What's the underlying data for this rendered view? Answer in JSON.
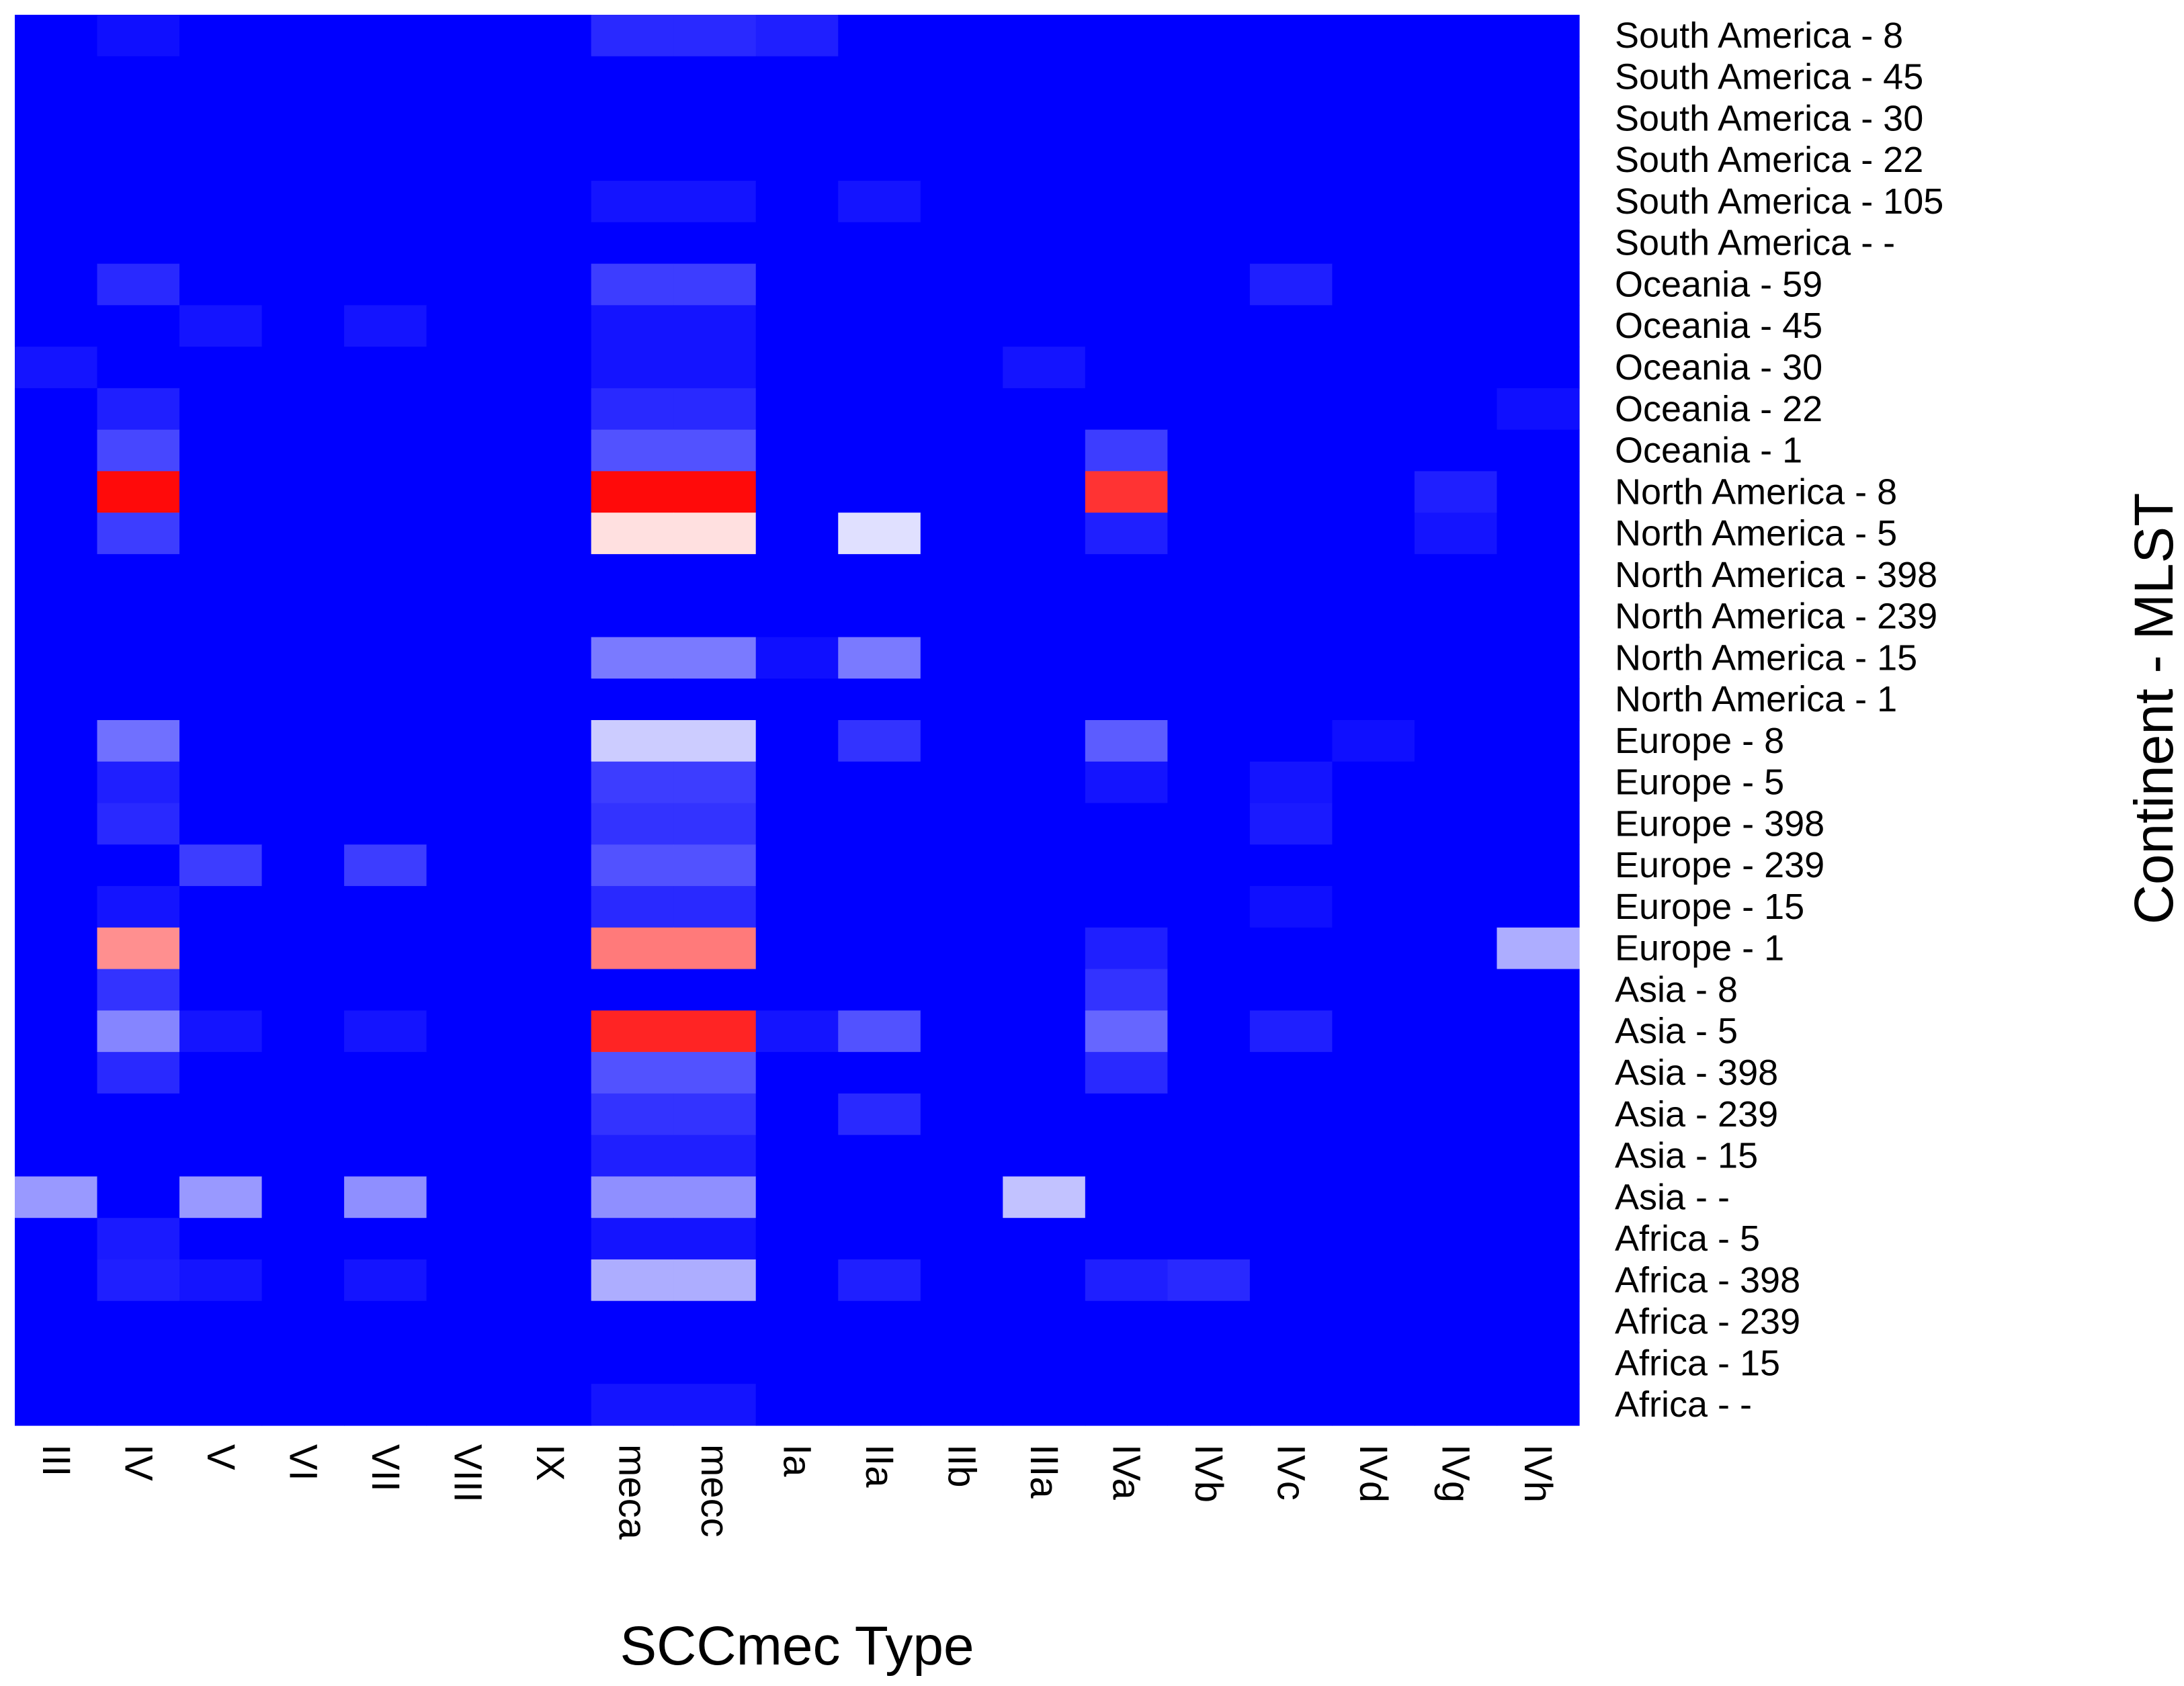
{
  "chart_data": {
    "type": "heatmap",
    "title": "",
    "xlabel": "SCCmec Type",
    "ylabel": "Continent - MLST",
    "x": [
      "III",
      "IV",
      "V",
      "VI",
      "VII",
      "VIII",
      "IX",
      "meca",
      "mecc",
      "Ia",
      "IIa",
      "IIb",
      "IIIa",
      "IVa",
      "IVb",
      "IVc",
      "IVd",
      "IVg",
      "IVh"
    ],
    "y": [
      "South America - 8",
      "South America - 45",
      "South America - 30",
      "South America - 22",
      "South America - 105",
      "South America - -",
      "Oceania - 59",
      "Oceania - 45",
      "Oceania - 30",
      "Oceania - 22",
      "Oceania - 1",
      "North America - 8",
      "North America - 5",
      "North America - 398",
      "North America - 239",
      "North America - 15",
      "North America - 1",
      "Europe - 8",
      "Europe - 5",
      "Europe - 398",
      "Europe - 239",
      "Europe - 15",
      "Europe - 1",
      "Asia - 8",
      "Asia - 5",
      "Asia - 398",
      "Asia - 239",
      "Asia - 15",
      "Asia - -",
      "Africa - 5",
      "Africa - 398",
      "Africa - 239",
      "Africa - 15",
      "Africa - -"
    ],
    "color_scale": {
      "low": "#0000FF",
      "mid": "#FFFFFF",
      "high": "#FF0000",
      "range": [
        0,
        1
      ]
    },
    "values": [
      [
        0,
        0.03,
        0,
        0,
        0,
        0,
        0,
        0.08,
        0.08,
        0.06,
        0,
        0,
        0,
        0,
        0,
        0,
        0,
        0,
        0
      ],
      [
        0,
        0,
        0,
        0,
        0,
        0,
        0,
        0,
        0,
        0,
        0,
        0,
        0,
        0,
        0,
        0,
        0,
        0,
        0
      ],
      [
        0,
        0,
        0,
        0,
        0,
        0,
        0,
        0,
        0,
        0,
        0,
        0,
        0,
        0,
        0,
        0,
        0,
        0,
        0
      ],
      [
        0,
        0,
        0,
        0,
        0,
        0,
        0,
        0,
        0,
        0,
        0,
        0,
        0,
        0,
        0,
        0,
        0,
        0,
        0
      ],
      [
        0,
        0,
        0,
        0,
        0,
        0,
        0,
        0.04,
        0.04,
        0,
        0.04,
        0,
        0,
        0,
        0,
        0,
        0,
        0,
        0
      ],
      [
        0,
        0,
        0,
        0,
        0,
        0,
        0,
        0,
        0,
        0,
        0,
        0,
        0,
        0,
        0,
        0,
        0,
        0,
        0
      ],
      [
        0,
        0.08,
        0,
        0,
        0,
        0,
        0,
        0.12,
        0.12,
        0,
        0,
        0,
        0,
        0,
        0,
        0.06,
        0,
        0,
        0
      ],
      [
        0,
        0,
        0.04,
        0,
        0.04,
        0,
        0,
        0.04,
        0.04,
        0,
        0,
        0,
        0,
        0,
        0,
        0,
        0,
        0,
        0
      ],
      [
        0.04,
        0,
        0,
        0,
        0,
        0,
        0,
        0.04,
        0.04,
        0,
        0,
        0,
        0.04,
        0,
        0,
        0,
        0,
        0,
        0
      ],
      [
        0,
        0.06,
        0,
        0,
        0,
        0,
        0,
        0.08,
        0.08,
        0,
        0,
        0,
        0,
        0,
        0,
        0,
        0,
        0,
        0.03
      ],
      [
        0,
        0.14,
        0,
        0,
        0,
        0,
        0,
        0.16,
        0.16,
        0,
        0,
        0,
        0,
        0.12,
        0,
        0,
        0,
        0,
        0
      ],
      [
        0,
        0.98,
        0,
        0,
        0,
        0,
        0,
        0.98,
        0.98,
        0,
        0,
        0,
        0,
        0.9,
        0,
        0,
        0,
        0.06,
        0
      ],
      [
        0,
        0.12,
        0,
        0,
        0,
        0,
        0,
        0.56,
        0.56,
        0,
        0.44,
        0,
        0,
        0.06,
        0,
        0,
        0,
        0.04,
        0
      ],
      [
        0,
        0,
        0,
        0,
        0,
        0,
        0,
        0,
        0,
        0,
        0,
        0,
        0,
        0,
        0,
        0,
        0,
        0,
        0
      ],
      [
        0,
        0,
        0,
        0,
        0,
        0,
        0,
        0,
        0,
        0,
        0,
        0,
        0,
        0,
        0,
        0,
        0,
        0,
        0
      ],
      [
        0,
        0,
        0,
        0,
        0,
        0,
        0,
        0.24,
        0.24,
        0.03,
        0.24,
        0,
        0,
        0,
        0,
        0,
        0,
        0,
        0
      ],
      [
        0,
        0,
        0,
        0,
        0,
        0,
        0,
        0,
        0,
        0,
        0,
        0,
        0,
        0,
        0,
        0,
        0,
        0,
        0
      ],
      [
        0,
        0.22,
        0,
        0,
        0,
        0,
        0,
        0.4,
        0.4,
        0,
        0.1,
        0,
        0,
        0.18,
        0,
        0,
        0.03,
        0,
        0
      ],
      [
        0,
        0.06,
        0,
        0,
        0,
        0,
        0,
        0.12,
        0.12,
        0,
        0,
        0,
        0,
        0.04,
        0,
        0.04,
        0,
        0,
        0
      ],
      [
        0,
        0.08,
        0,
        0,
        0,
        0,
        0,
        0.1,
        0.1,
        0,
        0,
        0,
        0,
        0,
        0,
        0.05,
        0,
        0,
        0
      ],
      [
        0,
        0,
        0.12,
        0,
        0.12,
        0,
        0,
        0.16,
        0.16,
        0,
        0,
        0,
        0,
        0,
        0,
        0,
        0,
        0,
        0
      ],
      [
        0,
        0.04,
        0,
        0,
        0,
        0,
        0,
        0.08,
        0.08,
        0,
        0,
        0,
        0,
        0,
        0,
        0.03,
        0,
        0,
        0
      ],
      [
        0,
        0.72,
        0,
        0,
        0,
        0,
        0,
        0.76,
        0.76,
        0,
        0,
        0,
        0,
        0.06,
        0,
        0,
        0,
        0,
        0.34
      ],
      [
        0,
        0.1,
        0,
        0,
        0,
        0,
        0,
        0,
        0,
        0,
        0,
        0,
        0,
        0.1,
        0,
        0,
        0,
        0,
        0
      ],
      [
        0,
        0.26,
        0.04,
        0,
        0.04,
        0,
        0,
        0.93,
        0.93,
        0.04,
        0.16,
        0,
        0,
        0.2,
        0,
        0.06,
        0,
        0,
        0
      ],
      [
        0,
        0.08,
        0,
        0,
        0,
        0,
        0,
        0.16,
        0.16,
        0,
        0,
        0,
        0,
        0.08,
        0,
        0,
        0,
        0,
        0
      ],
      [
        0,
        0,
        0,
        0,
        0,
        0,
        0,
        0.1,
        0.1,
        0,
        0.08,
        0,
        0,
        0,
        0,
        0,
        0,
        0,
        0
      ],
      [
        0,
        0,
        0,
        0,
        0,
        0,
        0,
        0.06,
        0.06,
        0,
        0,
        0,
        0,
        0,
        0,
        0,
        0,
        0,
        0
      ],
      [
        0.3,
        0,
        0.3,
        0,
        0.28,
        0,
        0,
        0.28,
        0.28,
        0,
        0,
        0,
        0.38,
        0,
        0,
        0,
        0,
        0,
        0
      ],
      [
        0,
        0.05,
        0,
        0,
        0,
        0,
        0,
        0.04,
        0.04,
        0,
        0,
        0,
        0,
        0,
        0,
        0,
        0,
        0,
        0
      ],
      [
        0,
        0.06,
        0.04,
        0,
        0.04,
        0,
        0,
        0.34,
        0.34,
        0,
        0.06,
        0,
        0,
        0.06,
        0.08,
        0,
        0,
        0,
        0
      ],
      [
        0,
        0,
        0,
        0,
        0,
        0,
        0,
        0,
        0,
        0,
        0,
        0,
        0,
        0,
        0,
        0,
        0,
        0,
        0
      ],
      [
        0,
        0,
        0,
        0,
        0,
        0,
        0,
        0,
        0,
        0,
        0,
        0,
        0,
        0,
        0,
        0,
        0,
        0,
        0
      ],
      [
        0,
        0,
        0,
        0,
        0,
        0,
        0,
        0.04,
        0.04,
        0,
        0,
        0,
        0,
        0,
        0,
        0,
        0,
        0,
        0
      ]
    ]
  }
}
